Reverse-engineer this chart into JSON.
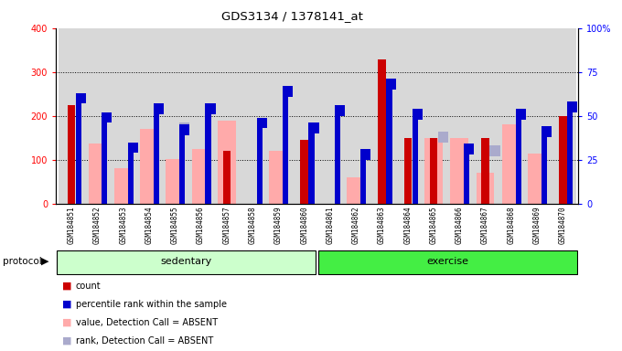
{
  "title": "GDS3134 / 1378141_at",
  "samples": [
    "GSM184851",
    "GSM184852",
    "GSM184853",
    "GSM184854",
    "GSM184855",
    "GSM184856",
    "GSM184857",
    "GSM184858",
    "GSM184859",
    "GSM184860",
    "GSM184861",
    "GSM184862",
    "GSM184863",
    "GSM184864",
    "GSM184865",
    "GSM184866",
    "GSM184867",
    "GSM184868",
    "GSM184869",
    "GSM184870"
  ],
  "count_red": [
    225,
    0,
    0,
    0,
    0,
    0,
    120,
    0,
    0,
    145,
    0,
    0,
    328,
    150,
    150,
    0,
    150,
    0,
    0,
    200
  ],
  "percentile_blue_raw": [
    60,
    49,
    32,
    54,
    42,
    54,
    0,
    46,
    64,
    43,
    53,
    28,
    68,
    51,
    0,
    31,
    0,
    51,
    41,
    55
  ],
  "value_pink": [
    0,
    137,
    80,
    170,
    102,
    125,
    190,
    0,
    120,
    0,
    0,
    60,
    0,
    0,
    150,
    150,
    70,
    180,
    115,
    0
  ],
  "rank_lightblue_raw": [
    0,
    0,
    32,
    0,
    43,
    0,
    0,
    0,
    0,
    43,
    0,
    28,
    0,
    0,
    38,
    0,
    30,
    0,
    41,
    0
  ],
  "sedentary_count": 10,
  "exercise_count": 10,
  "ylim_left": [
    0,
    400
  ],
  "ylim_right": [
    0,
    100
  ],
  "yticks_left": [
    0,
    100,
    200,
    300,
    400
  ],
  "yticks_right": [
    0,
    25,
    50,
    75,
    100
  ],
  "yticklabels_right": [
    "0",
    "25",
    "50",
    "75",
    "100%"
  ],
  "color_red": "#cc0000",
  "color_blue": "#0000cc",
  "color_pink": "#ffaaaa",
  "color_lightblue": "#aaaacc",
  "color_sedentary": "#ccffcc",
  "color_exercise": "#44ee44",
  "protocol_label": "protocol",
  "sedentary_label": "sedentary",
  "exercise_label": "exercise",
  "legend_items": [
    "count",
    "percentile rank within the sample",
    "value, Detection Call = ABSENT",
    "rank, Detection Call = ABSENT"
  ],
  "bg_color": "#d8d8d8"
}
